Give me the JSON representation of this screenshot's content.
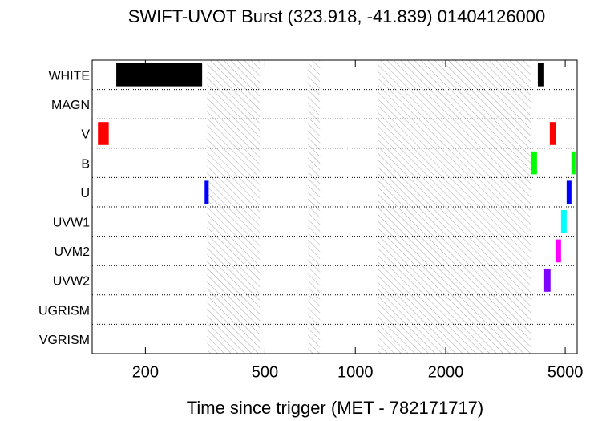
{
  "chart_data": {
    "type": "timeline",
    "title": "SWIFT-UVOT Burst (323.918, -41.839) 01404126000",
    "x_label": "Time since trigger (MET - 782171717)",
    "xscale": "log",
    "xlim": [
      133,
      5480
    ],
    "xticks": [
      200,
      500,
      1000,
      2000,
      5000
    ],
    "shaded_intervals": [
      [
        321,
        481
      ],
      [
        696,
        763
      ],
      [
        1187,
        3835
      ]
    ],
    "rows": [
      {
        "label": "WHITE",
        "color": "#000000",
        "intervals": [
          [
            160,
            309
          ],
          [
            4053,
            4256
          ]
        ]
      },
      {
        "label": "MAGN",
        "color": "#808080",
        "intervals": []
      },
      {
        "label": "V",
        "color": "#ff0000",
        "intervals": [
          [
            139,
            151
          ],
          [
            4443,
            4667
          ]
        ]
      },
      {
        "label": "B",
        "color": "#00ff00",
        "intervals": [
          [
            3835,
            4027
          ],
          [
            5245,
            5408
          ]
        ]
      },
      {
        "label": "U",
        "color": "#0000ff",
        "intervals": [
          [
            315,
            325
          ],
          [
            5055,
            5245
          ]
        ]
      },
      {
        "label": "UVW1",
        "color": "#00ffff",
        "intervals": [
          [
            4842,
            5055
          ]
        ]
      },
      {
        "label": "UVM2",
        "color": "#ff00ff",
        "intervals": [
          [
            4640,
            4842
          ]
        ]
      },
      {
        "label": "UVW2",
        "color": "#8000ff",
        "intervals": [
          [
            4256,
            4467
          ]
        ]
      },
      {
        "label": "UGRISM",
        "color": "#808080",
        "intervals": []
      },
      {
        "label": "VGRISM",
        "color": "#808080",
        "intervals": []
      }
    ]
  }
}
